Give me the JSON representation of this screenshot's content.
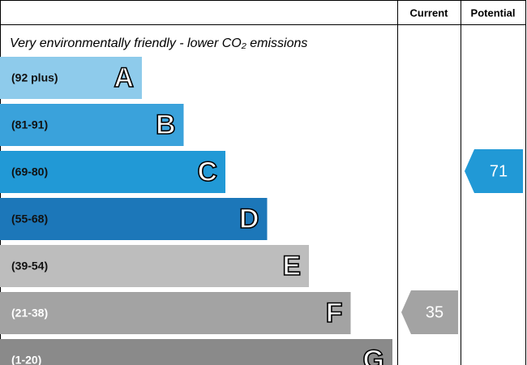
{
  "header": {
    "current_label": "Current",
    "potential_label": "Potential"
  },
  "subtitle": "Very environmentally friendly - lower CO₂ emissions",
  "bands": [
    {
      "range": "(92 plus)",
      "letter": "A",
      "color": "#8ecbeb"
    },
    {
      "range": "(81-91)",
      "letter": "B",
      "color": "#3aa2db"
    },
    {
      "range": "(69-80)",
      "letter": "C",
      "color": "#2199d6"
    },
    {
      "range": "(55-68)",
      "letter": "D",
      "color": "#1c77b9"
    },
    {
      "range": "(39-54)",
      "letter": "E",
      "color": "#bdbdbd"
    },
    {
      "range": "(21-38)",
      "letter": "F",
      "color": "#a3a3a3"
    },
    {
      "range": "(1-20)",
      "letter": "G",
      "color": "#8a8a8a"
    }
  ],
  "current": {
    "value": 35
  },
  "potential": {
    "value": 71
  }
}
